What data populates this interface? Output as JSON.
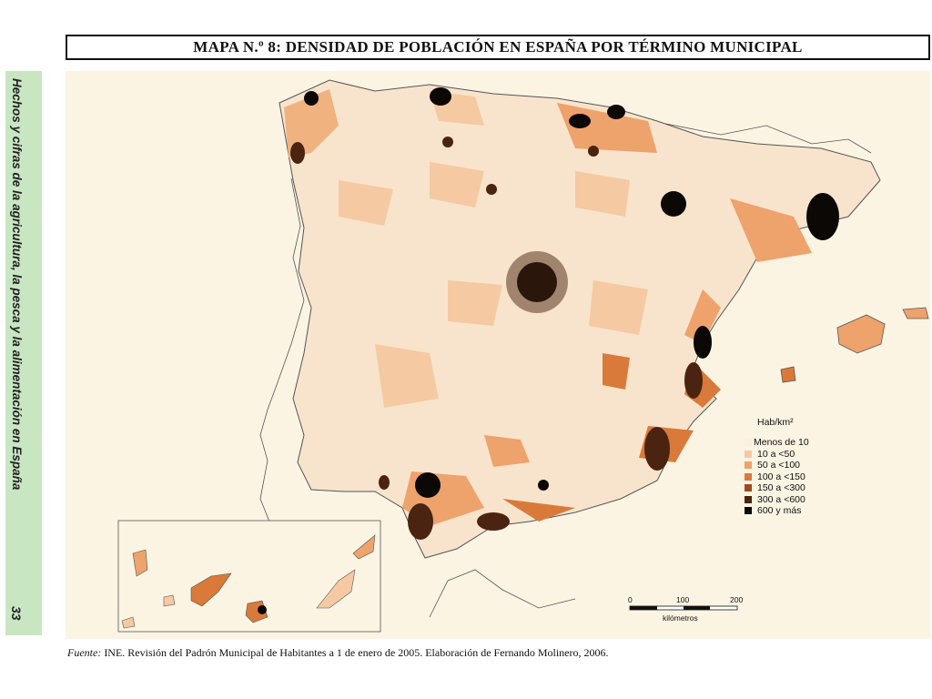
{
  "title": "MAPA N.º 8: DENSIDAD DE POBLACIÓN EN ESPAÑA POR TÉRMINO MUNICIPAL",
  "sidebar": {
    "text": "Hechos y cifras de la agricultura, la pesca y la alimentación en España",
    "page_number": "33",
    "color": "#c8e6c2"
  },
  "legend": {
    "title": "Hab/km²",
    "items": [
      {
        "label": "Menos de 10",
        "color": "#fbefdf"
      },
      {
        "label": "10 a <50",
        "color": "#f5c9a2"
      },
      {
        "label": "50 a <100",
        "color": "#eea26c"
      },
      {
        "label": "100 a <150",
        "color": "#d97a3a"
      },
      {
        "label": "150 a <300",
        "color": "#9e4a1e"
      },
      {
        "label": "300 a <600",
        "color": "#4a2410"
      },
      {
        "label": "600 y más",
        "color": "#0c0806"
      }
    ]
  },
  "scale": {
    "ticks": [
      "0",
      "100",
      "200"
    ],
    "unit": "kilómetros"
  },
  "source": {
    "lead": "Fuente:",
    "text": " INE. Revisión del Padrón Municipal de Habitantes a 1 de enero de 2005. Elaboración de Fernando Molinero, 2006."
  }
}
